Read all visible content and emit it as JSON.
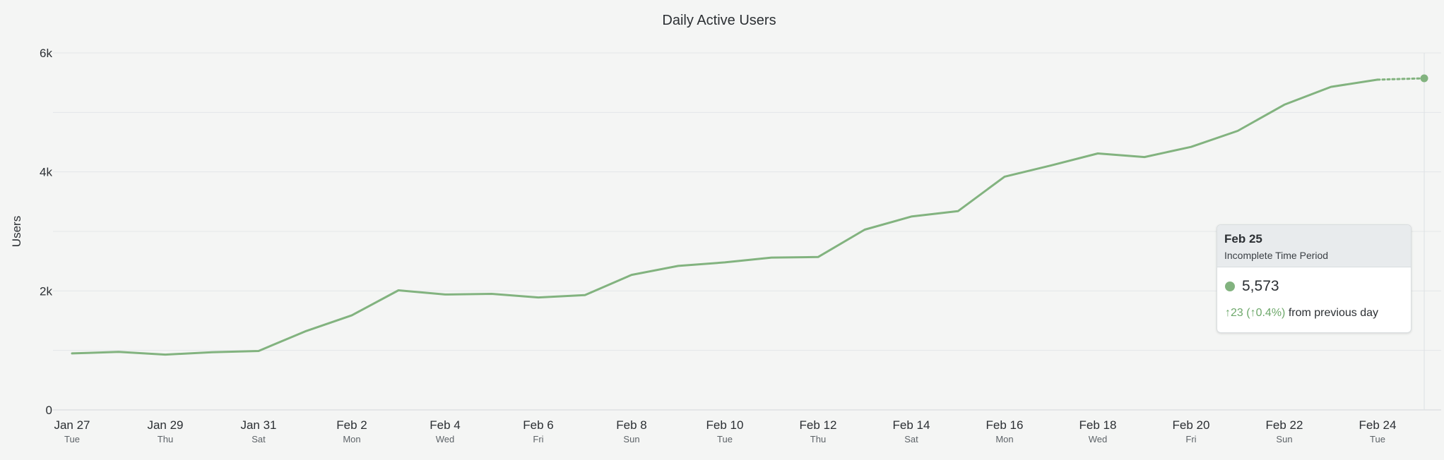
{
  "chart_data": {
    "type": "line",
    "title": "Daily Active Users",
    "xlabel": "",
    "ylabel": "Users",
    "ylim": [
      0,
      6000
    ],
    "y_ticks": [
      {
        "value": 0,
        "label": "0"
      },
      {
        "value": 2000,
        "label": "2k"
      },
      {
        "value": 4000,
        "label": "4k"
      },
      {
        "value": 6000,
        "label": "6k"
      }
    ],
    "grid": true,
    "line_color": "#82b37f",
    "grid_color": "#e3e6e8",
    "x_ticks": [
      {
        "index": 0,
        "label": "Jan 27",
        "sublabel": "Tue"
      },
      {
        "index": 2,
        "label": "Jan 29",
        "sublabel": "Thu"
      },
      {
        "index": 4,
        "label": "Jan 31",
        "sublabel": "Sat"
      },
      {
        "index": 6,
        "label": "Feb 2",
        "sublabel": "Mon"
      },
      {
        "index": 8,
        "label": "Feb 4",
        "sublabel": "Wed"
      },
      {
        "index": 10,
        "label": "Feb 6",
        "sublabel": "Fri"
      },
      {
        "index": 12,
        "label": "Feb 8",
        "sublabel": "Sun"
      },
      {
        "index": 14,
        "label": "Feb 10",
        "sublabel": "Tue"
      },
      {
        "index": 16,
        "label": "Feb 12",
        "sublabel": "Thu"
      },
      {
        "index": 18,
        "label": "Feb 14",
        "sublabel": "Sat"
      },
      {
        "index": 20,
        "label": "Feb 16",
        "sublabel": "Mon"
      },
      {
        "index": 22,
        "label": "Feb 18",
        "sublabel": "Wed"
      },
      {
        "index": 24,
        "label": "Feb 20",
        "sublabel": "Fri"
      },
      {
        "index": 26,
        "label": "Feb 22",
        "sublabel": "Sun"
      },
      {
        "index": 28,
        "label": "Feb 24",
        "sublabel": "Tue"
      }
    ],
    "series": [
      {
        "name": "Users",
        "values": [
          950,
          975,
          930,
          970,
          990,
          1320,
          1590,
          2010,
          1940,
          1950,
          1890,
          1930,
          2270,
          2420,
          2480,
          2560,
          2570,
          3030,
          3250,
          3340,
          3920,
          4110,
          4310,
          4250,
          4420,
          4690,
          5130,
          5430,
          5550,
          5573
        ],
        "incomplete_from_index": 28
      }
    ],
    "highlight_index": 29
  },
  "tooltip": {
    "date": "Feb 25",
    "subtitle": "Incomplete Time Period",
    "value": "5,573",
    "change": "↑23 (↑0.4%)",
    "change_suffix": " from previous day"
  }
}
